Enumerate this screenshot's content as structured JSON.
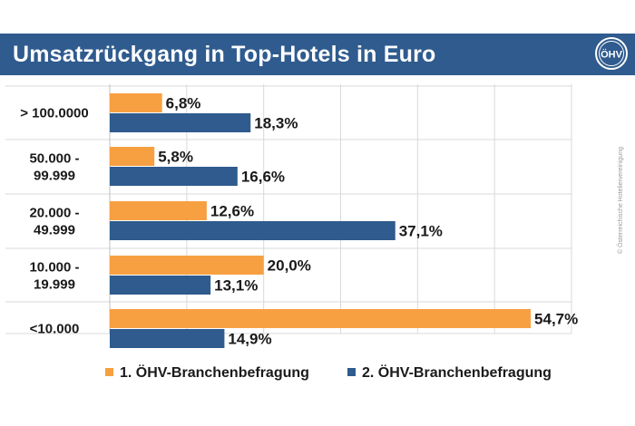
{
  "header": {
    "title": "Umsatzrückgang  in Top-Hotels in Euro",
    "logo_text": "ÖHV"
  },
  "colors": {
    "header_bg": "#2f5b8e",
    "series1": "#f7a042",
    "series2": "#2f5b8e",
    "grid": "#d9d9d9"
  },
  "chart_data": {
    "type": "bar",
    "orientation": "horizontal",
    "categories": [
      [
        "> 100.0000"
      ],
      [
        "50.000 -",
        "99.999"
      ],
      [
        "20.000 -",
        "49.999"
      ],
      [
        "10.000 -",
        "19.999"
      ],
      [
        "<10.000"
      ]
    ],
    "series": [
      {
        "name": "1. ÖHV-Branchenbefragung",
        "values": [
          6.8,
          5.8,
          12.6,
          20.0,
          54.7
        ],
        "labels": [
          "6,8%",
          "5,8%",
          "12,6%",
          "20,0%",
          "54,7%"
        ],
        "color": "#f7a042"
      },
      {
        "name": "2. ÖHV-Branchenbefragung",
        "values": [
          18.3,
          16.6,
          37.1,
          13.1,
          14.9
        ],
        "labels": [
          "18,3%",
          "16,6%",
          "37,1%",
          "13,1%",
          "14,9%"
        ],
        "color": "#2f5b8e"
      }
    ],
    "xlim": [
      0,
      60
    ],
    "grid": true,
    "legend": "bottom"
  },
  "copyright": "© Österreichische Hoteliervereinigung"
}
